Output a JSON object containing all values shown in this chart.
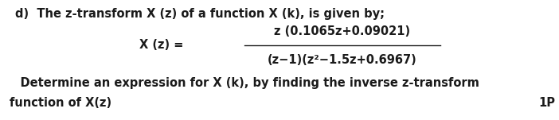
{
  "background_color": "#ffffff",
  "fig_width": 7.02,
  "fig_height": 1.51,
  "dpi": 100,
  "line1": "d)  The z-transform X (z) of a function X (k), is given by;",
  "label_xz": "X (z) =",
  "numerator": "z (0.1065z+0.09021)",
  "denominator": "(z−1)(z²−1.5z+0.6967)",
  "line3": "    Determine an expression for X (k), by finding the inverse z-transform",
  "line4": "function of X(z)",
  "mark": "1P",
  "font_size_main": 10.5,
  "text_color": "#1a1a1a"
}
